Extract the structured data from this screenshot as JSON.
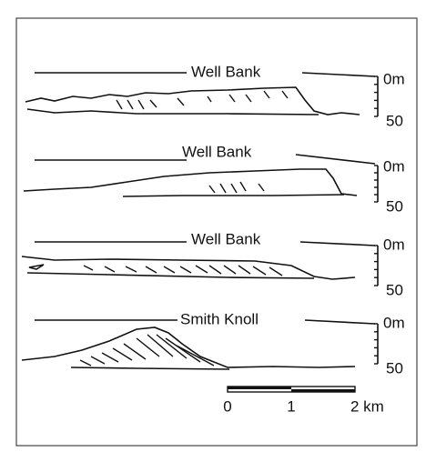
{
  "profiles": [
    {
      "label": "Well Bank",
      "depth_top": "0m",
      "depth_bottom": "50"
    },
    {
      "label": "Well Bank",
      "depth_top": "0m",
      "depth_bottom": "50"
    },
    {
      "label": "Well Bank",
      "depth_top": "0m",
      "depth_bottom": "50"
    },
    {
      "label": "Smith  Knoll",
      "depth_top": "0m",
      "depth_bottom": "50"
    }
  ],
  "scale_bar": {
    "labels": [
      "0",
      "1",
      "2 km"
    ]
  }
}
